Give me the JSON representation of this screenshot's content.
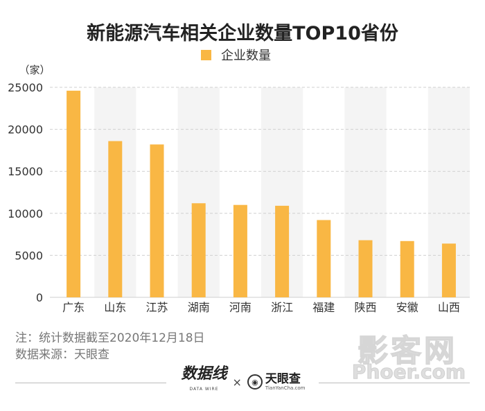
{
  "chart_data": {
    "type": "bar",
    "title": "新能源汽车相关企业数量TOP10省份",
    "legend": [
      "企业数量"
    ],
    "ylabel": "（家）",
    "categories": [
      "广东",
      "山东",
      "江苏",
      "湖南",
      "河南",
      "浙江",
      "福建",
      "陕西",
      "安徽",
      "山西"
    ],
    "series": [
      {
        "name": "企业数量",
        "values": [
          24600,
          18600,
          18200,
          11200,
          11000,
          10900,
          9200,
          6800,
          6700,
          6400
        ]
      }
    ],
    "ylim": [
      0,
      25000
    ],
    "yticks": [
      "0",
      "5000",
      "10000",
      "15000",
      "20000",
      "25000"
    ],
    "grid": true,
    "colors": {
      "bar": "#F9B744",
      "band": "#F4F4F4",
      "grid": "#cfcfcf"
    }
  },
  "notes": {
    "line1": "注：统计数据截至2020年12月18日",
    "line2": "数据来源：天眼查"
  },
  "watermark": {
    "main": "影客网",
    "url": "Phoer.com"
  },
  "footer": {
    "brand1": "数据线",
    "brand1_sub": "DATA WIRE",
    "separator": "×",
    "brand2": "天眼查",
    "brand2_sub": "TianYanCha.com"
  }
}
